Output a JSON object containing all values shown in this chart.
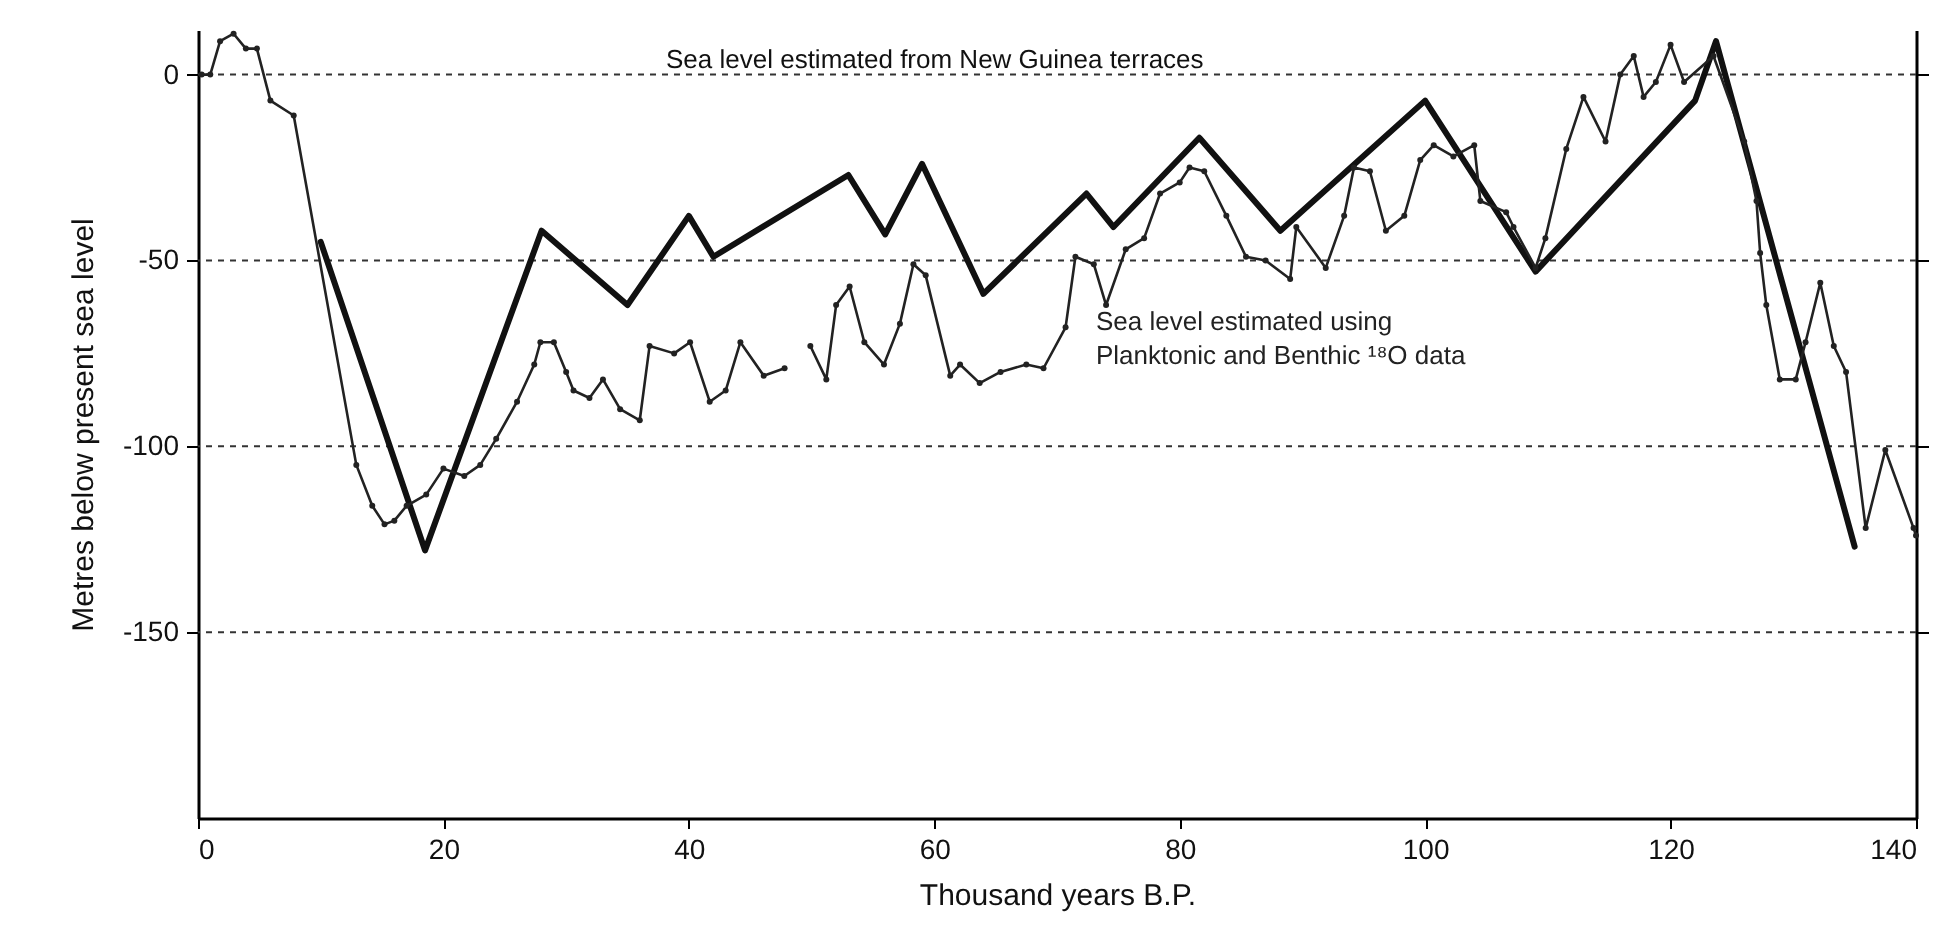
{
  "chart_data": {
    "type": "line",
    "xlabel": "Thousand years B.P.",
    "ylabel": "Metres below present sea level",
    "xlim": [
      0,
      140
    ],
    "xticks": [
      0,
      20,
      40,
      60,
      80,
      100,
      120,
      140
    ],
    "ylim": [
      -200,
      12
    ],
    "yticks": [
      -150,
      -100,
      -50,
      0
    ],
    "grid": "y",
    "line_style": "solid",
    "series": [
      {
        "name": "Sea level estimated from New Guinea terraces",
        "color": "#111111",
        "marker": "none",
        "x": [
          10,
          18.5,
          28,
          35,
          40,
          42,
          53,
          56,
          59,
          64,
          72.4,
          74.6,
          81.6,
          88.2,
          100,
          109,
          122,
          123.7,
          135
        ],
        "values": [
          -45,
          -128,
          -42,
          -62,
          -38,
          -49,
          -27,
          -43,
          -24,
          -59,
          -32,
          -41,
          -17,
          -42,
          -7,
          -53,
          -7,
          9,
          -127
        ]
      },
      {
        "name": "Sea level estimated using Planktonic and Benthic ¹⁸O data",
        "color": "#222222",
        "marker": "circle",
        "x": [
          0.3,
          1,
          1.8,
          2.9,
          3.9,
          4.8,
          5.9,
          7.8,
          12.9,
          14.2,
          15.2,
          16,
          17,
          18.6,
          20,
          21.7,
          23,
          24.3,
          26,
          27.4,
          27.9,
          29,
          30,
          30.6,
          31.9,
          33,
          34.4,
          36,
          36.8,
          38.8,
          40.1,
          41.7,
          43,
          44.2,
          46.1,
          47.8,
          48.8,
          49.9,
          51.2,
          52,
          53.1,
          54.3,
          55.9,
          57.2,
          58.3,
          59.3,
          61.3,
          62.1,
          63.7,
          65.4,
          67.5,
          68.9,
          70.7,
          71.5,
          73,
          74,
          75.6,
          77.1,
          78.4,
          80,
          80.8,
          82,
          83.8,
          85.4,
          87,
          89,
          89.5,
          91.9,
          93.4,
          94.2,
          95.5,
          96.8,
          98.3,
          99.6,
          100.7,
          102.3,
          104,
          104.5,
          106.6,
          107.2,
          109,
          109.8,
          111.5,
          112.9,
          114.7,
          115.9,
          117,
          117.8,
          118.8,
          120,
          121.1,
          123.5,
          126,
          127,
          127.3,
          127.8,
          128.9,
          130.2,
          131,
          132.2,
          133.3,
          134.3,
          135.9,
          137.5,
          139.8,
          140
        ],
        "values": [
          0,
          0,
          9,
          11,
          7,
          7,
          -7,
          -11,
          -105,
          -116,
          -121,
          -120,
          -116,
          -113,
          -106,
          -108,
          -105,
          -98,
          -88,
          -78,
          -72,
          -72,
          -80,
          -85,
          -87,
          -82,
          -90,
          -93,
          -73,
          -75,
          -72,
          -88,
          -85,
          -72,
          -81,
          -79,
          null,
          -73,
          -82,
          -62,
          -57,
          -72,
          -78,
          -67,
          -51,
          -54,
          -81,
          -78,
          -83,
          -80,
          -78,
          -79,
          -68,
          -49,
          -51,
          -62,
          -47,
          -44,
          -32,
          -29,
          -25,
          -26,
          -38,
          -49,
          -50,
          -55,
          -41,
          -52,
          -38,
          -25,
          -26,
          -42,
          -38,
          -23,
          -19,
          -22,
          -19,
          -34,
          -37,
          -41,
          -52,
          -44,
          -20,
          -6,
          -18,
          0,
          5,
          -6,
          -2,
          8,
          -2,
          5,
          -18,
          -34,
          -48,
          -62,
          -82,
          -82,
          -72,
          -56,
          -73,
          -80,
          -122,
          -101,
          -122,
          -124
        ]
      }
    ]
  }
}
